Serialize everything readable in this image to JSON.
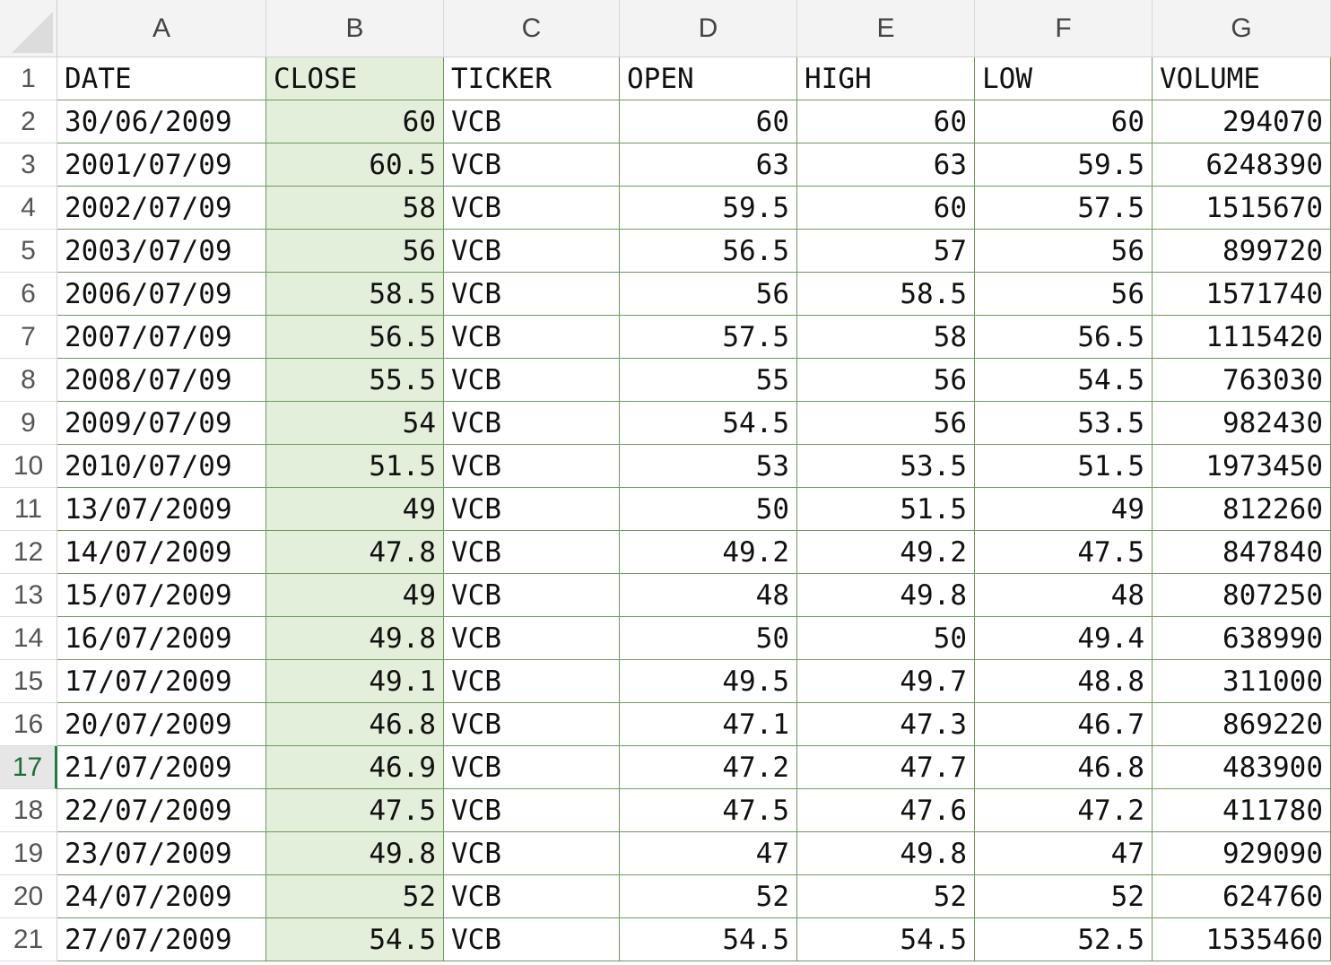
{
  "columns": [
    "A",
    "B",
    "C",
    "D",
    "E",
    "F",
    "G"
  ],
  "header_row": [
    "DATE",
    "CLOSE",
    "TICKER",
    "OPEN",
    "HIGH",
    "LOW",
    "VOLUME"
  ],
  "selected_column": "B",
  "active_row": "17",
  "rows": [
    {
      "n": "2",
      "cells": [
        "30/06/2009",
        "60",
        "VCB",
        "60",
        "60",
        "60",
        "294070"
      ]
    },
    {
      "n": "3",
      "cells": [
        "2001/07/09",
        "60.5",
        "VCB",
        "63",
        "63",
        "59.5",
        "6248390"
      ]
    },
    {
      "n": "4",
      "cells": [
        "2002/07/09",
        "58",
        "VCB",
        "59.5",
        "60",
        "57.5",
        "1515670"
      ]
    },
    {
      "n": "5",
      "cells": [
        "2003/07/09",
        "56",
        "VCB",
        "56.5",
        "57",
        "56",
        "899720"
      ]
    },
    {
      "n": "6",
      "cells": [
        "2006/07/09",
        "58.5",
        "VCB",
        "56",
        "58.5",
        "56",
        "1571740"
      ]
    },
    {
      "n": "7",
      "cells": [
        "2007/07/09",
        "56.5",
        "VCB",
        "57.5",
        "58",
        "56.5",
        "1115420"
      ]
    },
    {
      "n": "8",
      "cells": [
        "2008/07/09",
        "55.5",
        "VCB",
        "55",
        "56",
        "54.5",
        "763030"
      ]
    },
    {
      "n": "9",
      "cells": [
        "2009/07/09",
        "54",
        "VCB",
        "54.5",
        "56",
        "53.5",
        "982430"
      ]
    },
    {
      "n": "10",
      "cells": [
        "2010/07/09",
        "51.5",
        "VCB",
        "53",
        "53.5",
        "51.5",
        "1973450"
      ]
    },
    {
      "n": "11",
      "cells": [
        "13/07/2009",
        "49",
        "VCB",
        "50",
        "51.5",
        "49",
        "812260"
      ]
    },
    {
      "n": "12",
      "cells": [
        "14/07/2009",
        "47.8",
        "VCB",
        "49.2",
        "49.2",
        "47.5",
        "847840"
      ]
    },
    {
      "n": "13",
      "cells": [
        "15/07/2009",
        "49",
        "VCB",
        "48",
        "49.8",
        "48",
        "807250"
      ]
    },
    {
      "n": "14",
      "cells": [
        "16/07/2009",
        "49.8",
        "VCB",
        "50",
        "50",
        "49.4",
        "638990"
      ]
    },
    {
      "n": "15",
      "cells": [
        "17/07/2009",
        "49.1",
        "VCB",
        "49.5",
        "49.7",
        "48.8",
        "311000"
      ]
    },
    {
      "n": "16",
      "cells": [
        "20/07/2009",
        "46.8",
        "VCB",
        "47.1",
        "47.3",
        "46.7",
        "869220"
      ]
    },
    {
      "n": "17",
      "cells": [
        "21/07/2009",
        "46.9",
        "VCB",
        "47.2",
        "47.7",
        "46.8",
        "483900"
      ]
    },
    {
      "n": "18",
      "cells": [
        "22/07/2009",
        "47.5",
        "VCB",
        "47.5",
        "47.6",
        "47.2",
        "411780"
      ]
    },
    {
      "n": "19",
      "cells": [
        "23/07/2009",
        "49.8",
        "VCB",
        "47",
        "49.8",
        "47",
        "929090"
      ]
    },
    {
      "n": "20",
      "cells": [
        "24/07/2009",
        "52",
        "VCB",
        "52",
        "52",
        "52",
        "624760"
      ]
    },
    {
      "n": "21",
      "cells": [
        "27/07/2009",
        "54.5",
        "VCB",
        "54.5",
        "54.5",
        "52.5",
        "1535460"
      ]
    }
  ],
  "colors": {
    "grid_line": "#6d9a5f",
    "selection": "#e3eedb",
    "active_row_number": "#1e6b35"
  }
}
